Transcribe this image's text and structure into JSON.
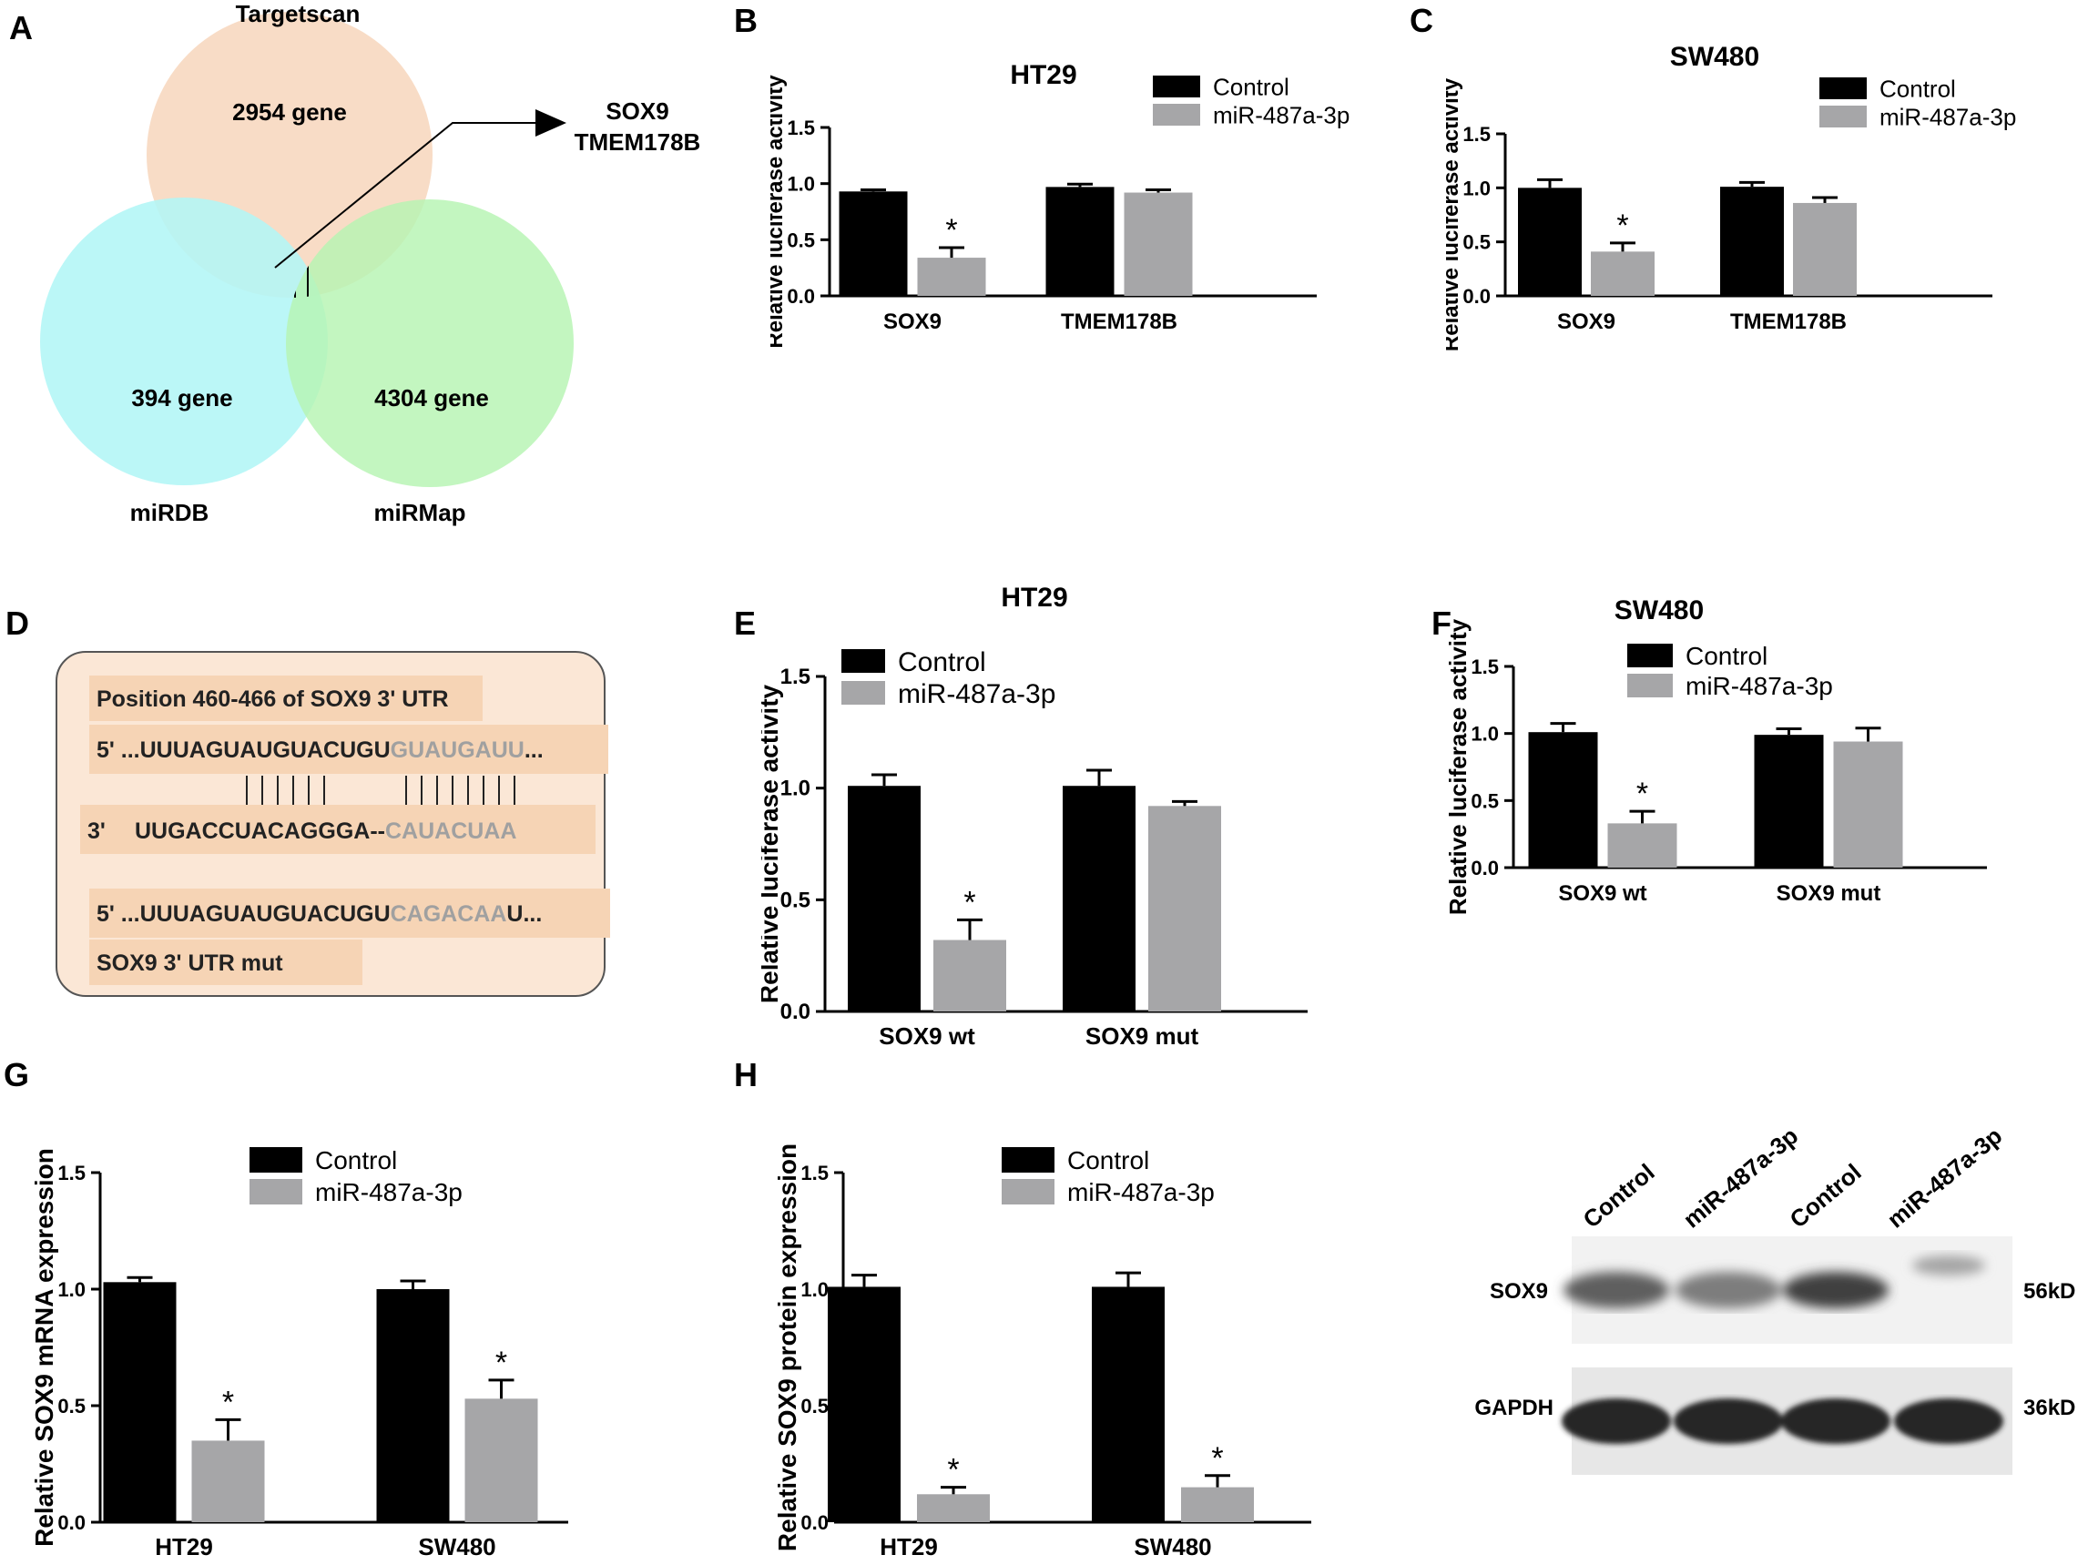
{
  "panel_labels": {
    "A": "A",
    "B": "B",
    "C": "C",
    "D": "D",
    "E": "E",
    "F": "F",
    "G": "G",
    "H": "H"
  },
  "colors": {
    "control": "#000000",
    "treatment": "#a6a6a8",
    "targetscan": "#f8dcc6",
    "mirdb": "#b2f6f6",
    "mirmap": "#b6f4b2",
    "seq_bg": "#fbe7d6",
    "seq_line": "#f6d4b5",
    "mut": "#a0a0a0"
  },
  "venn": {
    "targetscan_label": "Targetscan",
    "targetscan_count": "2954 gene",
    "mirdb_label": "miRDB",
    "mirdb_count": "394 gene",
    "mirmap_label": "miRMap",
    "mirmap_count": "4304 gene",
    "result_line1": "SOX9",
    "result_line2": "TMEM178B"
  },
  "sequence": {
    "title": "Position 460-466 of SOX9 3' UTR",
    "wt_prefix": "5' ...UUUAGUAUGUACUGU",
    "wt_seed": "GUAUGAUU",
    "wt_suffix": "...",
    "mirna_prefix": "3'",
    "mirna_main": "UUGACCUACAGGGA--",
    "mirna_seed": "CAUACUAA",
    "mut_prefix": "5' ...UUUAGUAUGUACUGU",
    "mut_seed": "CAGACAA",
    "mut_suffix": "U...",
    "mut_label": "SOX9 3' UTR mut"
  },
  "western": {
    "lanes": [
      "Control",
      "miR-487a-3p",
      "Control",
      "miR-487a-3p"
    ],
    "sox9_label": "SOX9",
    "sox9_size": "56kD",
    "gapdh_label": "GAPDH",
    "gapdh_size": "36kD",
    "sox9_intensity": [
      0.8,
      0.65,
      0.95,
      0.45
    ],
    "gapdh_intensity": [
      1,
      1,
      1,
      1
    ]
  },
  "chart_data": [
    {
      "id": "B",
      "type": "bar",
      "title": "HT29",
      "ylabel": "Relative luciferase activity",
      "categories": [
        "SOX9",
        "TMEM178B"
      ],
      "ylim": [
        0,
        1.5
      ],
      "yticks": [
        "0.0",
        "0.5",
        "1.0",
        "1.5"
      ],
      "series": [
        {
          "name": "Control",
          "values": [
            0.93,
            0.97
          ],
          "errors": [
            0.015,
            0.025
          ]
        },
        {
          "name": "miR-487a-3p",
          "values": [
            0.34,
            0.92
          ],
          "errors": [
            0.09,
            0.025
          ]
        }
      ],
      "significance": [
        "*",
        ""
      ]
    },
    {
      "id": "C",
      "type": "bar",
      "title": "SW480",
      "ylabel": "Relative luciferase activity",
      "categories": [
        "SOX9",
        "TMEM178B"
      ],
      "ylim": [
        0,
        1.5
      ],
      "yticks": [
        "0.0",
        "0.5",
        "1.0",
        "1.5"
      ],
      "series": [
        {
          "name": "Control",
          "values": [
            1.0,
            1.01
          ],
          "errors": [
            0.075,
            0.04
          ]
        },
        {
          "name": "miR-487a-3p",
          "values": [
            0.41,
            0.86
          ],
          "errors": [
            0.08,
            0.05
          ]
        }
      ],
      "significance": [
        "*",
        ""
      ]
    },
    {
      "id": "E",
      "type": "bar",
      "title": "HT29",
      "ylabel": "Relative luciferase activity",
      "categories": [
        "SOX9 wt",
        "SOX9 mut"
      ],
      "ylim": [
        0,
        1.5
      ],
      "yticks": [
        "0.0",
        "0.5",
        "1.0",
        "1.5"
      ],
      "series": [
        {
          "name": "Control",
          "values": [
            1.01,
            1.01
          ],
          "errors": [
            0.05,
            0.07
          ]
        },
        {
          "name": "miR-487a-3p",
          "values": [
            0.32,
            0.92
          ],
          "errors": [
            0.09,
            0.02
          ]
        }
      ],
      "significance": [
        "*",
        ""
      ]
    },
    {
      "id": "F",
      "type": "bar",
      "title": "SW480",
      "ylabel": "Relative luciferase activity",
      "categories": [
        "SOX9 wt",
        "SOX9 mut"
      ],
      "ylim": [
        0,
        1.5
      ],
      "yticks": [
        "0.0",
        "0.5",
        "1.0",
        "1.5"
      ],
      "series": [
        {
          "name": "Control",
          "values": [
            1.01,
            0.99
          ],
          "errors": [
            0.065,
            0.045
          ]
        },
        {
          "name": "miR-487a-3p",
          "values": [
            0.33,
            0.94
          ],
          "errors": [
            0.09,
            0.1
          ]
        }
      ],
      "significance": [
        "*",
        ""
      ]
    },
    {
      "id": "G",
      "type": "bar",
      "title": "",
      "ylabel": "Relative SOX9 mRNA expression",
      "categories": [
        "HT29",
        "SW480"
      ],
      "ylim": [
        0,
        1.5
      ],
      "yticks": [
        "0.0",
        "0.5",
        "1.0",
        "1.5"
      ],
      "series": [
        {
          "name": "Control",
          "values": [
            1.03,
            1.0
          ],
          "errors": [
            0.02,
            0.035
          ]
        },
        {
          "name": "miR-487a-3p",
          "values": [
            0.35,
            0.53
          ],
          "errors": [
            0.09,
            0.08
          ]
        }
      ],
      "significance": [
        "*",
        "*"
      ]
    },
    {
      "id": "H",
      "type": "bar",
      "title": "",
      "ylabel": "Relative SOX9 protein expression",
      "categories": [
        "HT29",
        "SW480"
      ],
      "ylim": [
        0,
        1.5
      ],
      "yticks": [
        "0.0",
        "0.5",
        "1.0",
        "1.5"
      ],
      "series": [
        {
          "name": "Control",
          "values": [
            1.01,
            1.01
          ],
          "errors": [
            0.05,
            0.06
          ]
        },
        {
          "name": "miR-487a-3p",
          "values": [
            0.12,
            0.15
          ],
          "errors": [
            0.03,
            0.05
          ]
        }
      ],
      "significance": [
        "*",
        "*"
      ]
    }
  ]
}
